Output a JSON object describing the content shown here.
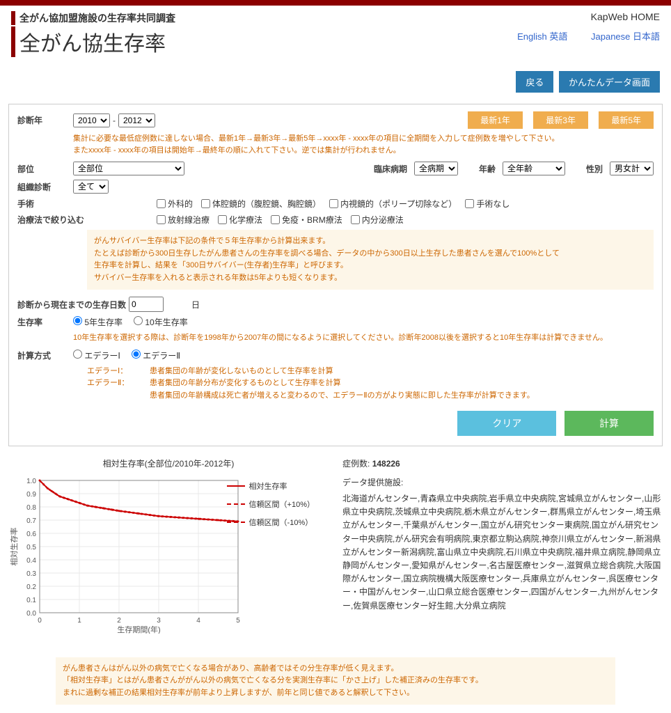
{
  "header": {
    "subtitle": "全がん協加盟施設の生存率共同調査",
    "title": "全がん協生存率",
    "home": "KapWeb HOME",
    "lang_en": "English 英語",
    "lang_ja": "Japanese 日本語"
  },
  "top_buttons": {
    "back": "戻る",
    "simple": "かんたんデータ画面"
  },
  "form": {
    "diag_year_label": "診断年",
    "year_from": "2010",
    "year_to": "2012",
    "quick1": "最新1年",
    "quick3": "最新3年",
    "quick5": "最新5年",
    "year_help1": "集計に必要な最低症例数に達しない場合、最新1年→最新3年→最新5年→xxxx年 - xxxx年の項目に全期間を入力して症例数を増やして下さい。",
    "year_help2": "またxxxx年 - xxxx年の項目は開始年→最終年の順に入れて下さい。逆では集計が行われません。",
    "site_label": "部位",
    "site_value": "全部位",
    "stage_label": "臨床病期",
    "stage_value": "全病期",
    "age_label": "年齢",
    "age_value": "全年齢",
    "sex_label": "性別",
    "sex_value": "男女計",
    "histology_label": "組織診断",
    "histology_value": "全て",
    "surgery_label": "手術",
    "surg_opt1": "外科的",
    "surg_opt2": "体腔鏡的（腹腔鏡、胸腔鏡）",
    "surg_opt3": "内視鏡的（ポリープ切除など）",
    "surg_opt4": "手術なし",
    "therapy_label": "治療法で絞り込む",
    "ther_opt1": "放射線治療",
    "ther_opt2": "化学療法",
    "ther_opt3": "免疫・BRM療法",
    "ther_opt4": "内分泌療法",
    "survivor_info1": "がんサバイバー生存率は下記の条件で５年生存率から計算出来ます。",
    "survivor_info2": "たとえば診断から300日生存したがん患者さんの生存率を調べる場合、データの中から300日以上生存した患者さんを選んで100%として",
    "survivor_info3": "生存率を計算し、結果を「300日サバイバー(生存者)生存率」と呼びます。",
    "survivor_info4": "サバイバー生存率を入れると表示される年数は5年よりも短くなります。",
    "days_label": "診断から現在までの生存日数",
    "days_value": "0",
    "days_unit": "日",
    "surv_label": "生存率",
    "surv_5y": "5年生存率",
    "surv_10y": "10年生存率",
    "surv_help": "10年生存率を選択する際は、診断年を1998年から2007年の間になるように選択してください。診断年2008以後を選択すると10年生存率は計算できません。",
    "method_label": "計算方式",
    "method1": "エデラーⅠ",
    "method2": "エデラーⅡ",
    "method_def1_label": "エデラーⅠ：",
    "method_def1_text": "患者集団の年齢が変化しないものとして生存率を計算",
    "method_def2_label": "エデラーⅡ：",
    "method_def2_text": "患者集団の年齢分布が変化するものとして生存率を計算",
    "method_def3_text": "患者集団の年齢構成は死亡者が増えると変わるので、エデラーⅡの方がより実態に即した生存率が計算できます。",
    "clear": "クリア",
    "calc": "計算"
  },
  "chart": {
    "title": "相対生存率(全部位/2010年-2012年)",
    "ylabel": "相対生存率",
    "xlabel": "生存期間(年)",
    "legend1": "相対生存率",
    "legend2": "信頼区間（+10%）",
    "legend3": "信頼区間（-10%）",
    "xlim": [
      0,
      5
    ],
    "ylim": [
      0,
      1
    ],
    "xticks": [
      0,
      1,
      2,
      3,
      4,
      5
    ],
    "yticks": [
      0,
      0.1,
      0.2,
      0.3,
      0.4,
      0.5,
      0.6,
      0.7,
      0.8,
      0.9,
      1
    ],
    "line_color": "#cc0000",
    "ci_color": "#cc0000",
    "grid_color": "#e8e8e8",
    "data_points": [
      {
        "x": 0,
        "y": 1.0
      },
      {
        "x": 0.1,
        "y": 0.97
      },
      {
        "x": 0.2,
        "y": 0.94
      },
      {
        "x": 0.3,
        "y": 0.92
      },
      {
        "x": 0.4,
        "y": 0.9
      },
      {
        "x": 0.5,
        "y": 0.88
      },
      {
        "x": 0.6,
        "y": 0.87
      },
      {
        "x": 0.7,
        "y": 0.86
      },
      {
        "x": 0.8,
        "y": 0.85
      },
      {
        "x": 0.9,
        "y": 0.84
      },
      {
        "x": 1.0,
        "y": 0.83
      },
      {
        "x": 1.2,
        "y": 0.81
      },
      {
        "x": 1.4,
        "y": 0.8
      },
      {
        "x": 1.6,
        "y": 0.79
      },
      {
        "x": 1.8,
        "y": 0.78
      },
      {
        "x": 2.0,
        "y": 0.77
      },
      {
        "x": 2.5,
        "y": 0.75
      },
      {
        "x": 3.0,
        "y": 0.73
      },
      {
        "x": 3.5,
        "y": 0.72
      },
      {
        "x": 4.0,
        "y": 0.71
      },
      {
        "x": 4.5,
        "y": 0.7
      },
      {
        "x": 5.0,
        "y": 0.69
      }
    ]
  },
  "results": {
    "case_label": "症例数:",
    "case_count": "148226",
    "fac_title": "データ提供施設:",
    "fac_list": "北海道がんセンター,青森県立中央病院,岩手県立中央病院,宮城県立がんセンター,山形県立中央病院,茨城県立中央病院,栃木県立がんセンター,群馬県立がんセンター,埼玉県立がんセンター,千葉県がんセンター,国立がん研究センター東病院,国立がん研究センター中央病院,がん研究会有明病院,東京都立駒込病院,神奈川県立がんセンター,新潟県立がんセンター新潟病院,富山県立中央病院,石川県立中央病院,福井県立病院,静岡県立静岡がんセンター,愛知県がんセンター,名古屋医療センター,滋賀県立総合病院,大阪国際がんセンター,国立病院機構大阪医療センター,兵庫県立がんセンター,呉医療センター・中国がんセンター,山口県立総合医療センター,四国がんセンター,九州がんセンター,佐賀県医療センター好生館,大分県立病院"
  },
  "bottom_note": {
    "line1": "がん患者さんはがん以外の病気で亡くなる場合があり、高齢者ではその分生存率が低く見えます。",
    "line2": "「相対生存率」とはがん患者さんががん以外の病気で亡くなる分を実測生存率に「かさ上げ」した補正済みの生存率です。",
    "line3": "まれに過剰な補正の結果相対生存率が前年より上昇しますが、前年と同じ値であると解釈して下さい。"
  }
}
